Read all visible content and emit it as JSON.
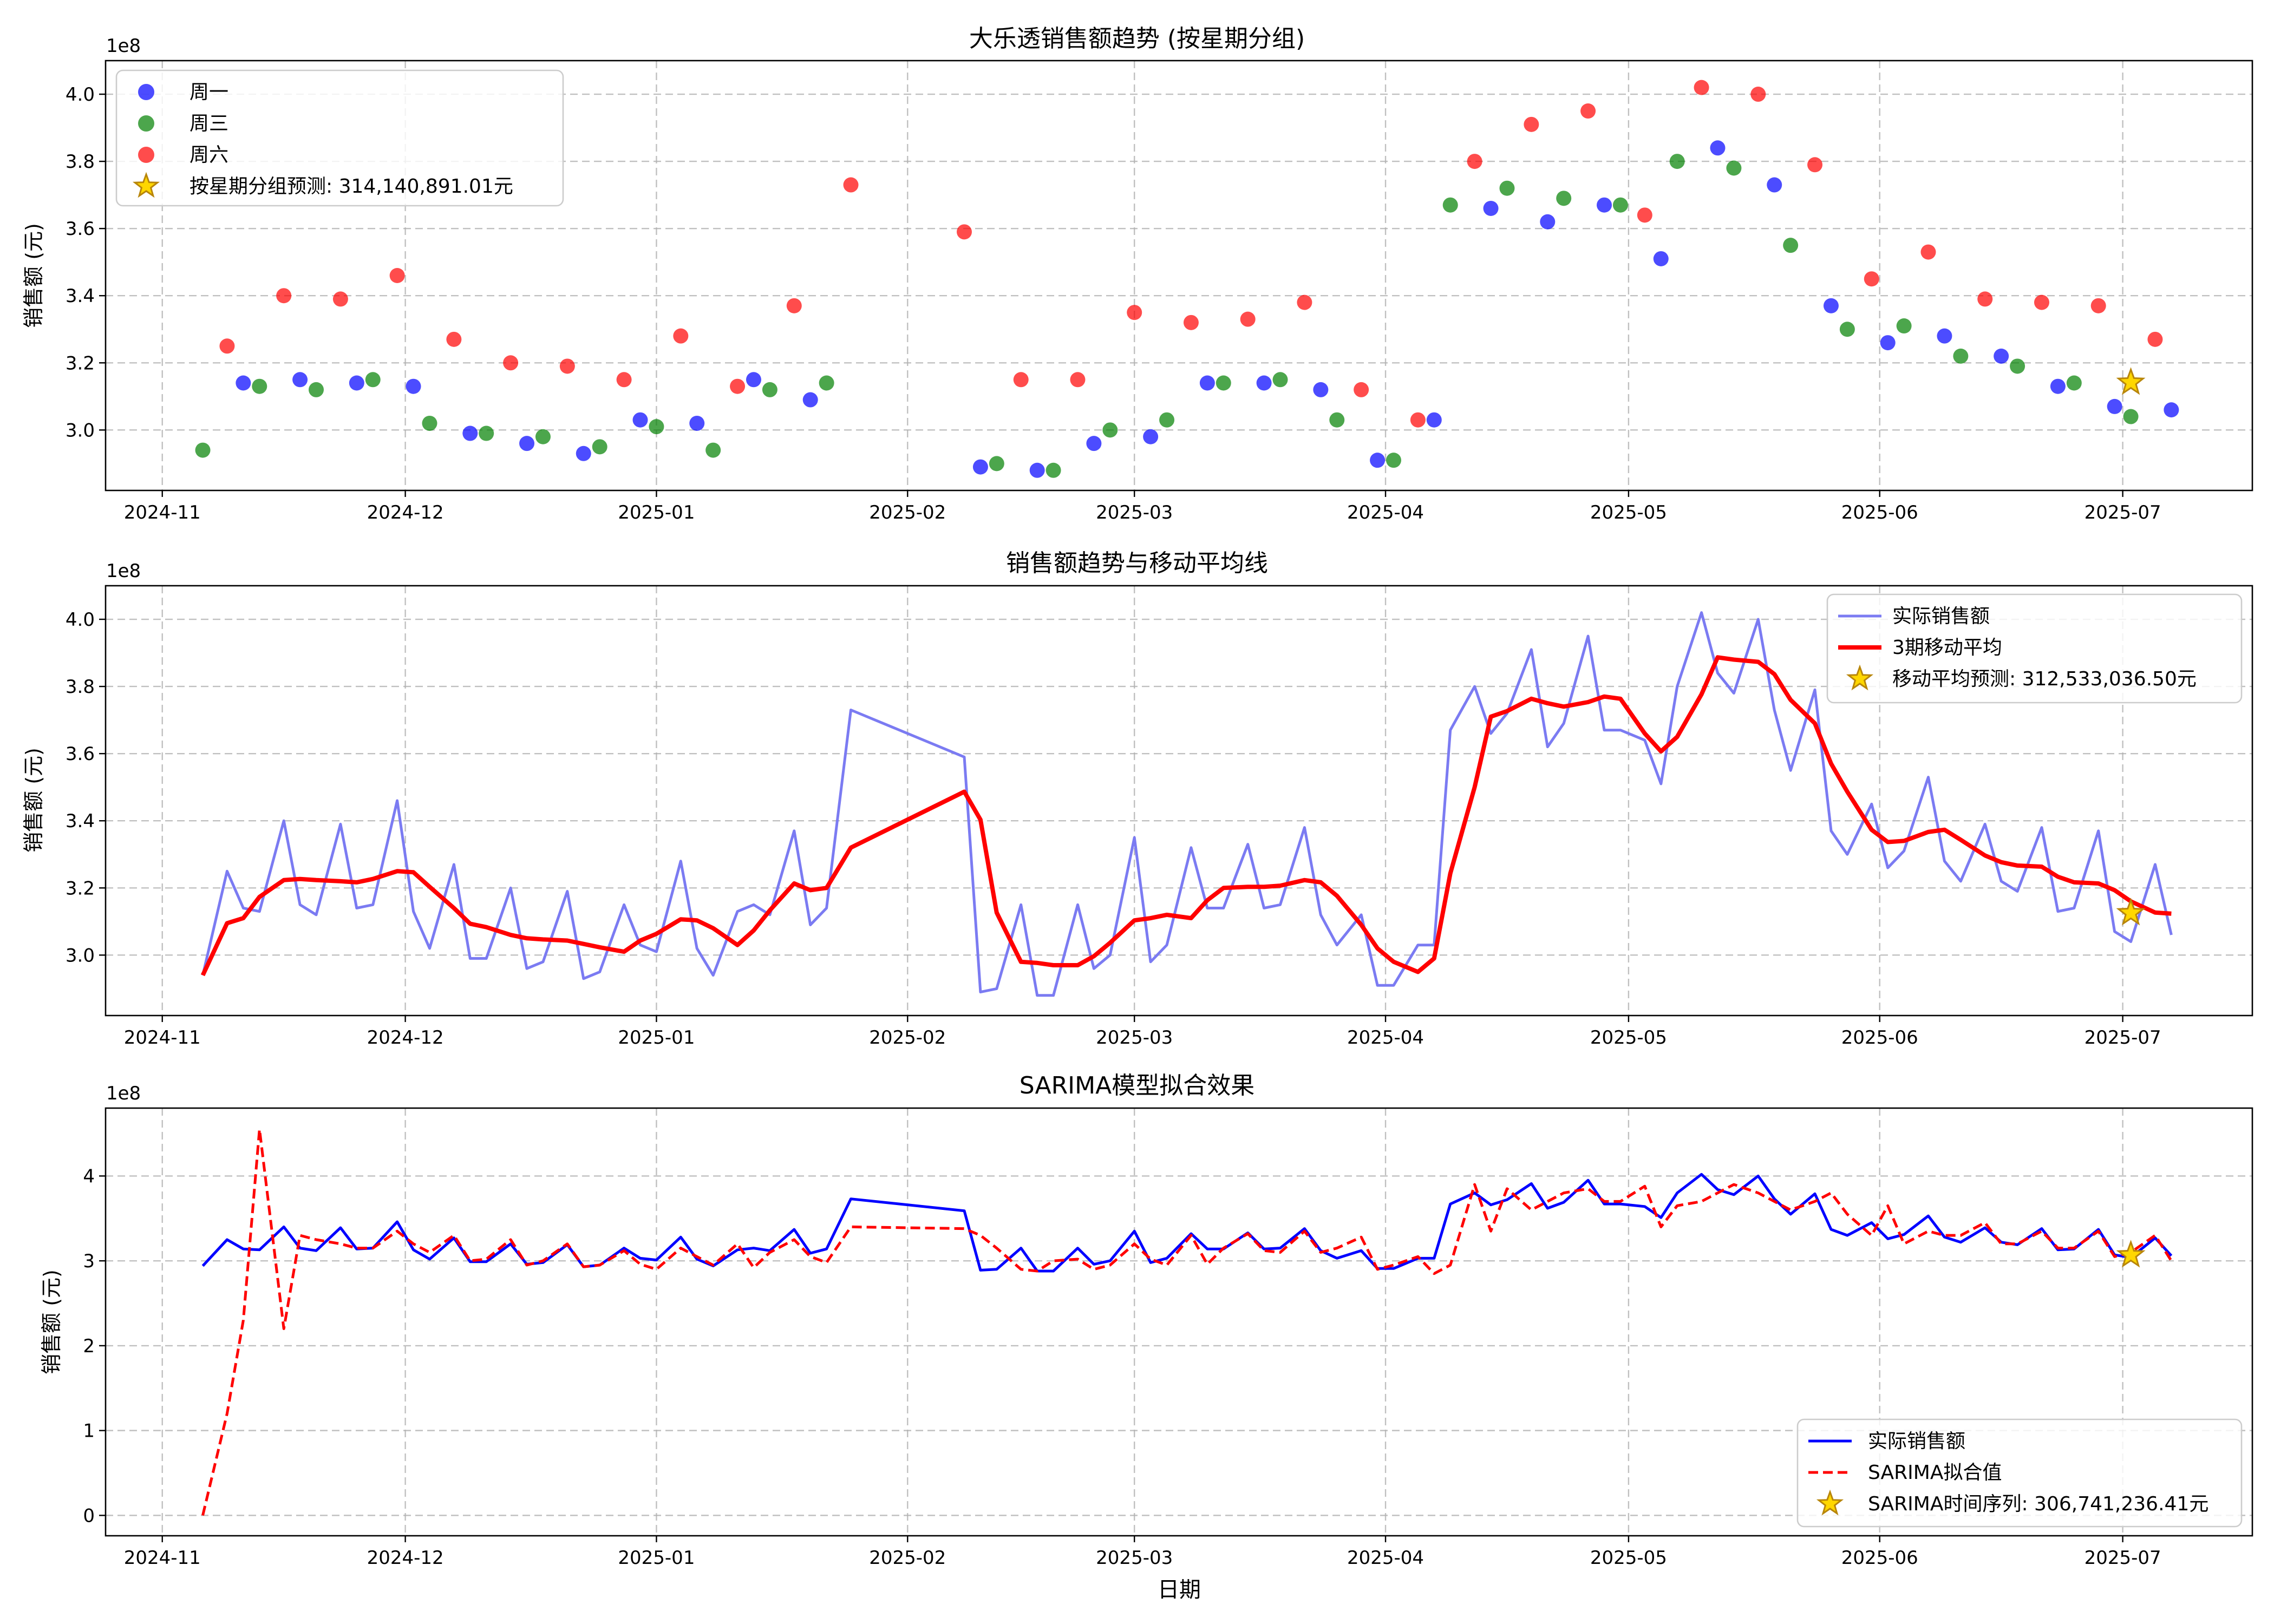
{
  "chart_data": [
    {
      "type": "scatter",
      "title": "大乐透销售额趋势 (按星期分组)",
      "xlabel": "",
      "ylabel": "销售额 (元)",
      "y_multiplier": "1e8",
      "xlim": [
        "2024-10-25",
        "2025-07-17"
      ],
      "ylim": [
        2.82,
        4.1
      ],
      "yticks": [
        3.0,
        3.2,
        3.4,
        3.6,
        3.8,
        4.0
      ],
      "ytick_labels": [
        "3.0",
        "3.2",
        "3.4",
        "3.6",
        "3.8",
        "4.0"
      ],
      "xticks": [
        "2024-11-01",
        "2024-12-01",
        "2025-01-01",
        "2025-02-01",
        "2025-03-01",
        "2025-04-01",
        "2025-05-01",
        "2025-06-01",
        "2025-07-01"
      ],
      "xtick_labels": [
        "2024-11",
        "2024-12",
        "2025-01",
        "2025-02",
        "2025-03",
        "2025-04",
        "2025-05",
        "2025-06",
        "2025-07"
      ],
      "grid": true,
      "legend_position": "upper-left",
      "series": [
        {
          "name": "周一",
          "color": "#0000ff",
          "x": [
            "2024-11-11",
            "2024-11-18",
            "2024-11-25",
            "2024-12-02",
            "2024-12-09",
            "2024-12-16",
            "2024-12-23",
            "2024-12-30",
            "2025-01-06",
            "2025-01-13",
            "2025-01-20",
            "2025-02-10",
            "2025-02-17",
            "2025-02-24",
            "2025-03-03",
            "2025-03-10",
            "2025-03-17",
            "2025-03-24",
            "2025-03-31",
            "2025-04-07",
            "2025-04-14",
            "2025-04-21",
            "2025-04-28",
            "2025-05-05",
            "2025-05-12",
            "2025-05-19",
            "2025-05-26",
            "2025-06-02",
            "2025-06-09",
            "2025-06-16",
            "2025-06-23",
            "2025-06-30",
            "2025-07-07"
          ],
          "y": [
            3.14,
            3.15,
            3.14,
            3.13,
            2.99,
            2.96,
            2.93,
            3.03,
            3.02,
            3.15,
            3.09,
            2.89,
            2.88,
            2.96,
            2.98,
            3.14,
            3.14,
            3.12,
            2.91,
            3.03,
            3.66,
            3.62,
            3.67,
            3.51,
            3.84,
            3.73,
            3.37,
            3.26,
            3.28,
            3.22,
            3.13,
            3.07,
            3.06
          ]
        },
        {
          "name": "周三",
          "color": "#008000",
          "x": [
            "2024-11-06",
            "2024-11-13",
            "2024-11-20",
            "2024-11-27",
            "2024-12-04",
            "2024-12-11",
            "2024-12-18",
            "2024-12-25",
            "2025-01-01",
            "2025-01-08",
            "2025-01-15",
            "2025-01-22",
            "2025-02-12",
            "2025-02-19",
            "2025-02-26",
            "2025-03-05",
            "2025-03-12",
            "2025-03-19",
            "2025-03-26",
            "2025-04-02",
            "2025-04-09",
            "2025-04-16",
            "2025-04-23",
            "2025-04-30",
            "2025-05-07",
            "2025-05-14",
            "2025-05-21",
            "2025-05-28",
            "2025-06-04",
            "2025-06-11",
            "2025-06-18",
            "2025-06-25",
            "2025-07-02"
          ],
          "y": [
            2.94,
            3.13,
            3.12,
            3.15,
            3.02,
            2.99,
            2.98,
            2.95,
            3.01,
            2.94,
            3.12,
            3.14,
            2.9,
            2.88,
            3.0,
            3.03,
            3.14,
            3.15,
            3.03,
            2.91,
            3.67,
            3.72,
            3.69,
            3.67,
            3.8,
            3.78,
            3.55,
            3.3,
            3.31,
            3.22,
            3.19,
            3.14,
            3.04
          ]
        },
        {
          "name": "周六",
          "color": "#ff0000",
          "x": [
            "2024-11-09",
            "2024-11-16",
            "2024-11-23",
            "2024-11-30",
            "2024-12-07",
            "2024-12-14",
            "2024-12-21",
            "2024-12-28",
            "2025-01-04",
            "2025-01-11",
            "2025-01-18",
            "2025-01-25",
            "2025-02-08",
            "2025-02-15",
            "2025-02-22",
            "2025-03-01",
            "2025-03-08",
            "2025-03-15",
            "2025-03-22",
            "2025-03-29",
            "2025-04-05",
            "2025-04-12",
            "2025-04-19",
            "2025-04-26",
            "2025-05-03",
            "2025-05-10",
            "2025-05-17",
            "2025-05-24",
            "2025-05-31",
            "2025-06-07",
            "2025-06-14",
            "2025-06-21",
            "2025-06-28",
            "2025-07-05"
          ],
          "y": [
            3.25,
            3.4,
            3.39,
            3.46,
            3.27,
            3.2,
            3.19,
            3.15,
            3.28,
            3.13,
            3.37,
            3.73,
            3.59,
            3.15,
            3.15,
            3.35,
            3.32,
            3.33,
            3.38,
            3.12,
            3.03,
            3.8,
            3.91,
            3.95,
            3.64,
            4.02,
            4.0,
            3.79,
            3.45,
            3.53,
            3.39,
            3.38,
            3.37,
            3.27
          ]
        }
      ],
      "forecast": {
        "label": "按星期分组预测: 314,140,891.01元",
        "x": "2025-07-02",
        "y": 3.1414,
        "color": "#ffd700",
        "edge": "#b8860b"
      }
    },
    {
      "type": "line",
      "title": "销售额趋势与移动平均线",
      "xlabel": "",
      "ylabel": "销售额 (元)",
      "y_multiplier": "1e8",
      "xlim": [
        "2024-10-25",
        "2025-07-17"
      ],
      "ylim": [
        2.82,
        4.1
      ],
      "yticks": [
        3.0,
        3.2,
        3.4,
        3.6,
        3.8,
        4.0
      ],
      "ytick_labels": [
        "3.0",
        "3.2",
        "3.4",
        "3.6",
        "3.8",
        "4.0"
      ],
      "xticks": [
        "2024-11-01",
        "2024-12-01",
        "2025-01-01",
        "2025-02-01",
        "2025-03-01",
        "2025-04-01",
        "2025-05-01",
        "2025-06-01",
        "2025-07-01"
      ],
      "xtick_labels": [
        "2024-11",
        "2024-12",
        "2025-01",
        "2025-02",
        "2025-03",
        "2025-04",
        "2025-05",
        "2025-06",
        "2025-07"
      ],
      "grid": true,
      "legend_position": "upper-right",
      "series": [
        {
          "name": "实际销售额",
          "color": "#7b7bf2",
          "style": "solid"
        },
        {
          "name": "3期移动平均",
          "color": "#ff0000",
          "style": "solid-thick"
        }
      ],
      "forecast": {
        "label": "移动平均预测: 312,533,036.50元",
        "x": "2025-07-02",
        "y": 3.1253,
        "color": "#ffd700",
        "edge": "#b8860b"
      }
    },
    {
      "type": "line",
      "title": "SARIMA模型拟合效果",
      "xlabel": "日期",
      "ylabel": "销售额 (元)",
      "y_multiplier": "1e8",
      "xlim": [
        "2024-10-25",
        "2025-07-17"
      ],
      "ylim": [
        -0.24,
        4.8
      ],
      "yticks": [
        0,
        1,
        2,
        3,
        4
      ],
      "ytick_labels": [
        "0",
        "1",
        "2",
        "3",
        "4"
      ],
      "xticks": [
        "2024-11-01",
        "2024-12-01",
        "2025-01-01",
        "2025-02-01",
        "2025-03-01",
        "2025-04-01",
        "2025-05-01",
        "2025-06-01",
        "2025-07-01"
      ],
      "xtick_labels": [
        "2024-11",
        "2024-12",
        "2025-01",
        "2025-02",
        "2025-03",
        "2025-04",
        "2025-05",
        "2025-06",
        "2025-07"
      ],
      "grid": true,
      "legend_position": "lower-right",
      "series": [
        {
          "name": "实际销售额",
          "color": "#0000ff",
          "style": "solid"
        },
        {
          "name": "SARIMA拟合值",
          "color": "#ff0000",
          "style": "dashed",
          "x": [
            "2024-11-06",
            "2024-11-09",
            "2024-11-11",
            "2024-11-13",
            "2024-11-16",
            "2024-11-18",
            "2024-11-20",
            "2024-11-23",
            "2024-11-25",
            "2024-11-27",
            "2024-11-30",
            "2024-12-02",
            "2024-12-04",
            "2024-12-07",
            "2024-12-09",
            "2024-12-11",
            "2024-12-14",
            "2024-12-16",
            "2024-12-18",
            "2024-12-21",
            "2024-12-23",
            "2024-12-25",
            "2024-12-28",
            "2024-12-30",
            "2025-01-01",
            "2025-01-04",
            "2025-01-06",
            "2025-01-08",
            "2025-01-11",
            "2025-01-13",
            "2025-01-15",
            "2025-01-18",
            "2025-01-20",
            "2025-01-22",
            "2025-01-25",
            "2025-02-08",
            "2025-02-10",
            "2025-02-12",
            "2025-02-15",
            "2025-02-17",
            "2025-02-19",
            "2025-02-22",
            "2025-02-24",
            "2025-02-26",
            "2025-03-01",
            "2025-03-03",
            "2025-03-05",
            "2025-03-08",
            "2025-03-10",
            "2025-03-12",
            "2025-03-15",
            "2025-03-17",
            "2025-03-19",
            "2025-03-22",
            "2025-03-24",
            "2025-03-26",
            "2025-03-29",
            "2025-03-31",
            "2025-04-02",
            "2025-04-05",
            "2025-04-07",
            "2025-04-09",
            "2025-04-12",
            "2025-04-14",
            "2025-04-16",
            "2025-04-19",
            "2025-04-21",
            "2025-04-23",
            "2025-04-26",
            "2025-04-28",
            "2025-04-30",
            "2025-05-03",
            "2025-05-05",
            "2025-05-07",
            "2025-05-10",
            "2025-05-12",
            "2025-05-14",
            "2025-05-17",
            "2025-05-19",
            "2025-05-21",
            "2025-05-24",
            "2025-05-26",
            "2025-05-28",
            "2025-05-31",
            "2025-06-02",
            "2025-06-04",
            "2025-06-07",
            "2025-06-09",
            "2025-06-11",
            "2025-06-14",
            "2025-06-16",
            "2025-06-18",
            "2025-06-21",
            "2025-06-23",
            "2025-06-25",
            "2025-06-28",
            "2025-06-30",
            "2025-07-02",
            "2025-07-05",
            "2025-07-07"
          ],
          "y": [
            0.0,
            1.2,
            2.3,
            4.55,
            2.2,
            3.3,
            3.25,
            3.2,
            3.15,
            3.15,
            3.35,
            3.2,
            3.1,
            3.3,
            3.0,
            3.02,
            3.25,
            2.95,
            3.0,
            3.2,
            2.93,
            2.95,
            3.12,
            2.96,
            2.9,
            3.15,
            3.05,
            2.95,
            3.2,
            2.92,
            3.1,
            3.25,
            3.05,
            2.98,
            3.4,
            3.38,
            3.3,
            3.15,
            2.9,
            2.88,
            3.0,
            3.02,
            2.9,
            2.95,
            3.2,
            3.02,
            2.95,
            3.3,
            2.96,
            3.15,
            3.32,
            3.12,
            3.1,
            3.35,
            3.1,
            3.15,
            3.28,
            2.9,
            2.95,
            3.05,
            2.85,
            2.95,
            3.9,
            3.35,
            3.85,
            3.6,
            3.7,
            3.8,
            3.85,
            3.7,
            3.7,
            3.88,
            3.4,
            3.65,
            3.7,
            3.8,
            3.9,
            3.8,
            3.7,
            3.6,
            3.7,
            3.8,
            3.55,
            3.3,
            3.65,
            3.2,
            3.35,
            3.3,
            3.3,
            3.45,
            3.2,
            3.2,
            3.35,
            3.15,
            3.15,
            3.35,
            3.05,
            3.1,
            3.3,
            3.0
          ]
        }
      ],
      "forecast": {
        "label": "SARIMA时间序列: 306,741,236.41元",
        "x": "2025-07-02",
        "y": 3.0674,
        "color": "#ffd700",
        "edge": "#b8860b"
      }
    }
  ]
}
